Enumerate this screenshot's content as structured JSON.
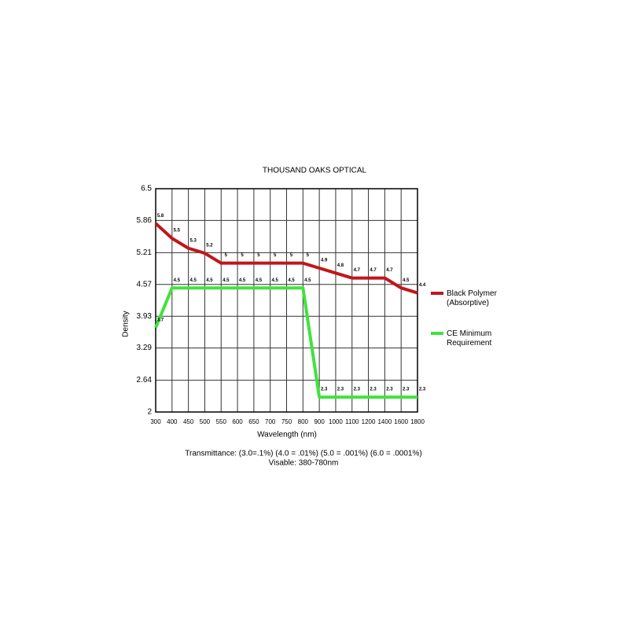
{
  "chart_data": {
    "type": "line",
    "title": "THOUSAND OAKS OPTICAL",
    "x_label": "Wavelength (nm)",
    "y_label": "Density",
    "categories": [
      "300",
      "400",
      "450",
      "500",
      "550",
      "600",
      "650",
      "700",
      "750",
      "800",
      "900",
      "1000",
      "1100",
      "1200",
      "1400",
      "1600",
      "1800"
    ],
    "series": [
      {
        "name": "Black Polymer (Absorptive)",
        "color": "#c0161b",
        "values": [
          5.8,
          5.5,
          5.3,
          5.2,
          5,
          5,
          5,
          5,
          5,
          5,
          4.9,
          4.8,
          4.7,
          4.7,
          4.7,
          4.5,
          4.4
        ]
      },
      {
        "name": "CE Minimum Requirement",
        "color": "#3fe43a",
        "values": [
          3.7,
          4.5,
          4.5,
          4.5,
          4.5,
          4.5,
          4.5,
          4.5,
          4.5,
          4.5,
          2.3,
          2.3,
          2.3,
          2.3,
          2.3,
          2.3,
          2.3
        ]
      }
    ],
    "ylim": [
      2,
      6.5
    ],
    "yticks": [
      2,
      2.64,
      3.29,
      3.93,
      4.57,
      5.21,
      5.86,
      6.5
    ],
    "grid": true,
    "legend": "right",
    "notes": [
      "Transmittance: (3.0=.1%) (4.0 = .01%) (5.0 = .001%) (6.0 = .0001%)",
      "Visable: 380-780nm"
    ]
  }
}
